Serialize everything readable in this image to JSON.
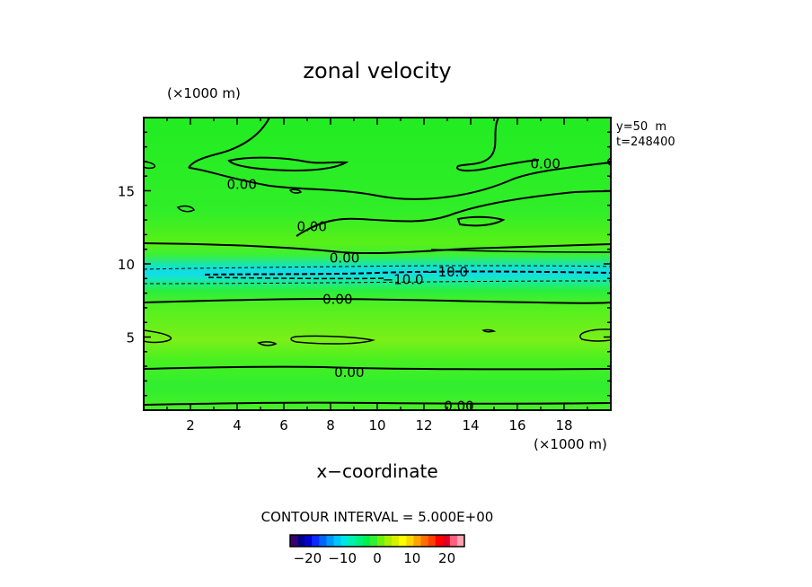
{
  "chart_data": {
    "type": "contour",
    "title": "zonal velocity",
    "xlabel": "x−coordinate",
    "x_unit": "(×1000 m)",
    "y_unit": "(×1000 m)",
    "xlim": [
      0,
      20
    ],
    "ylim": [
      0,
      20
    ],
    "x_ticks": [
      2,
      4,
      6,
      8,
      10,
      12,
      14,
      16,
      18
    ],
    "y_ticks": [
      5,
      10,
      15
    ],
    "info_lines": [
      "y=50  m",
      "t=248400"
    ],
    "contour_interval_text": "CONTOUR INTERVAL = 5.000E+00",
    "contour_labels": [
      {
        "text": "0.00",
        "x": 13.5,
        "y": 0.35
      },
      {
        "text": "0.00",
        "x": 8.8,
        "y": 2.65
      },
      {
        "text": "0.00",
        "x": 8.3,
        "y": 7.65
      },
      {
        "text": "0.00",
        "x": 8.6,
        "y": 10.45
      },
      {
        "text": "−10.0",
        "x": 11.1,
        "y": 9.0
      },
      {
        "text": "−10.0",
        "x": 13.0,
        "y": 9.5
      },
      {
        "text": "0.00",
        "x": 7.2,
        "y": 12.6
      },
      {
        "text": "0.00",
        "x": 4.2,
        "y": 15.5
      },
      {
        "text": "0.00",
        "x": 17.2,
        "y": 16.9
      }
    ],
    "colorbar": {
      "ticks": [
        -20,
        -10,
        0,
        10,
        20
      ],
      "tick_labels": [
        "−20",
        "−10",
        "0",
        "10",
        "20"
      ],
      "range": [
        -25,
        25
      ],
      "colors": [
        "#3a0070",
        "#00008b",
        "#0000cd",
        "#0a2cff",
        "#0064ff",
        "#0096ff",
        "#00c8ff",
        "#00e6e6",
        "#00f0b0",
        "#00f080",
        "#00f050",
        "#30f030",
        "#70f010",
        "#a8f000",
        "#d8f000",
        "#ffff00",
        "#ffd700",
        "#ffa500",
        "#ff7000",
        "#ff4000",
        "#ff0000",
        "#e00020",
        "#ff6080",
        "#ffa0b0"
      ]
    }
  }
}
